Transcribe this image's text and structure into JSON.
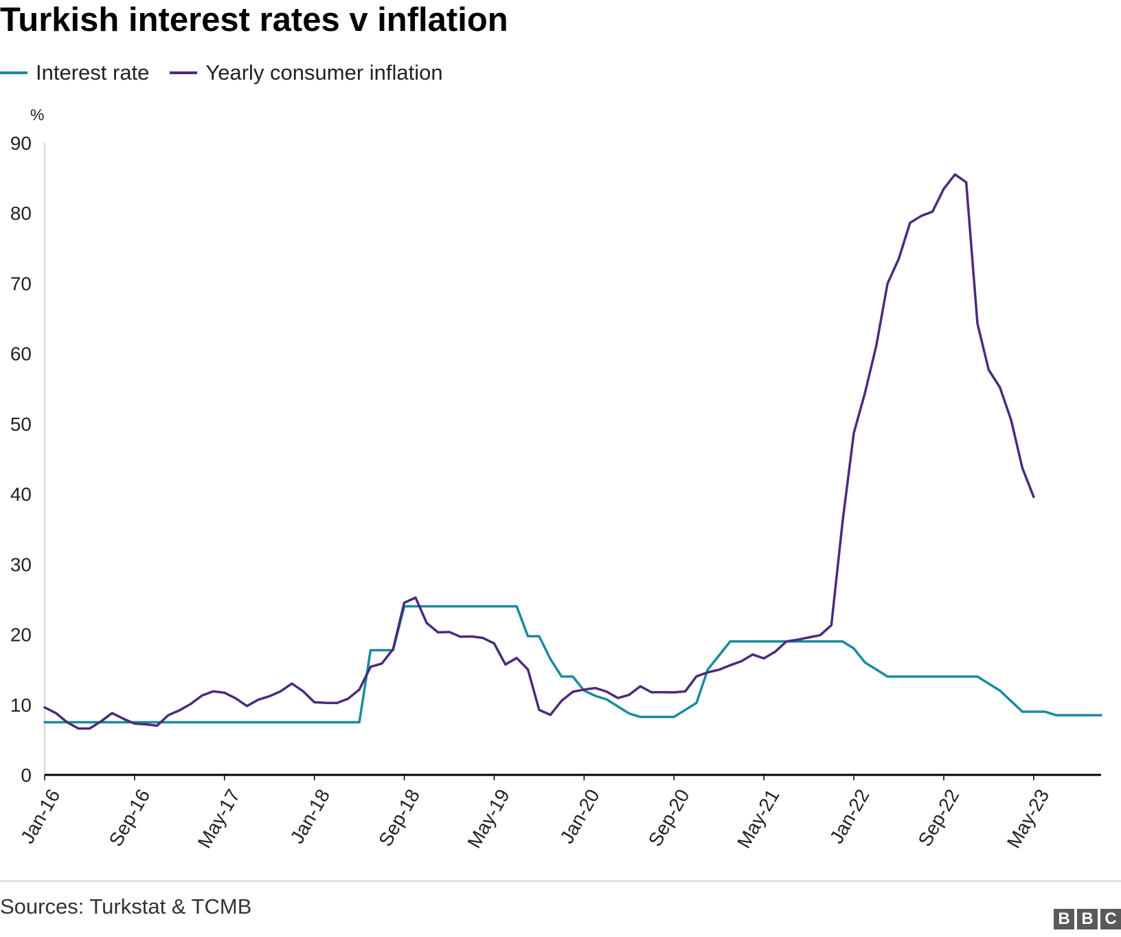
{
  "chart_data": {
    "type": "line",
    "title": "Turkish interest rates v inflation",
    "ylabel": "%",
    "xlabel": "",
    "ylim": [
      0,
      90
    ],
    "yticks": [
      0,
      10,
      20,
      30,
      40,
      50,
      60,
      70,
      80,
      90
    ],
    "x_tick_labels": [
      "Jan-16",
      "Sep-16",
      "May-17",
      "Jan-18",
      "Sep-18",
      "May-19",
      "Jan-20",
      "Sep-20",
      "May-21",
      "Jan-22",
      "Sep-22",
      "May-23"
    ],
    "x_start": "Jan-16",
    "x_end": "May-23",
    "grid": false,
    "legend_position": "top-left",
    "series": [
      {
        "name": "Interest rate",
        "color": "#1a8a9e",
        "values": [
          7.5,
          7.5,
          7.5,
          7.5,
          7.5,
          7.5,
          7.5,
          7.5,
          7.5,
          7.5,
          7.5,
          7.5,
          7.5,
          7.5,
          7.5,
          7.5,
          7.5,
          7.5,
          7.5,
          7.5,
          7.5,
          7.5,
          7.5,
          7.5,
          7.5,
          7.5,
          7.5,
          7.5,
          7.5,
          17.75,
          17.75,
          17.75,
          24,
          24,
          24,
          24,
          24,
          24,
          24,
          24,
          24,
          24,
          24,
          19.75,
          19.75,
          16.5,
          14,
          14,
          12,
          11.25,
          10.75,
          9.75,
          8.75,
          8.25,
          8.25,
          8.25,
          8.25,
          9.25,
          10.25,
          15,
          17,
          19,
          19,
          19,
          19,
          19,
          19,
          19,
          19,
          19,
          19,
          19,
          18,
          16,
          15,
          14,
          14,
          14,
          14,
          14,
          14,
          14,
          14,
          14,
          13,
          12,
          10.5,
          9,
          9,
          9,
          8.5,
          8.5,
          8.5,
          8.5,
          8.5
        ]
      },
      {
        "name": "Yearly consumer inflation",
        "color": "#4b2b7a",
        "values": [
          9.6,
          8.8,
          7.5,
          6.6,
          6.6,
          7.6,
          8.8,
          8.0,
          7.3,
          7.2,
          7.0,
          8.5,
          9.2,
          10.1,
          11.3,
          11.9,
          11.7,
          10.9,
          9.8,
          10.7,
          11.2,
          11.9,
          13.0,
          11.9,
          10.35,
          10.26,
          10.23,
          10.85,
          12.15,
          15.39,
          15.85,
          17.9,
          24.52,
          25.24,
          21.62,
          20.3,
          20.35,
          19.67,
          19.71,
          19.5,
          18.71,
          15.72,
          16.65,
          15.01,
          9.26,
          8.55,
          10.56,
          11.84,
          12.15,
          12.37,
          11.86,
          10.94,
          11.39,
          12.62,
          11.76,
          11.77,
          11.75,
          11.89,
          14.03,
          14.6,
          14.97,
          15.61,
          16.19,
          17.14,
          16.59,
          17.53,
          19.0,
          19.25,
          19.58,
          19.89,
          21.31,
          36.08,
          48.69,
          54.44,
          61.14,
          69.97,
          73.5,
          78.62,
          79.6,
          80.21,
          83.45,
          85.51,
          84.39,
          64.27,
          57.68,
          55.18,
          50.51,
          43.68,
          39.59
        ]
      }
    ]
  },
  "legend_items": [
    {
      "label": "Interest rate",
      "color": "#1a8a9e"
    },
    {
      "label": "Yearly consumer inflation",
      "color": "#4b2b7a"
    }
  ],
  "source": "Sources: Turkstat & TCMB",
  "logo": {
    "letters": [
      "B",
      "B",
      "C"
    ]
  }
}
